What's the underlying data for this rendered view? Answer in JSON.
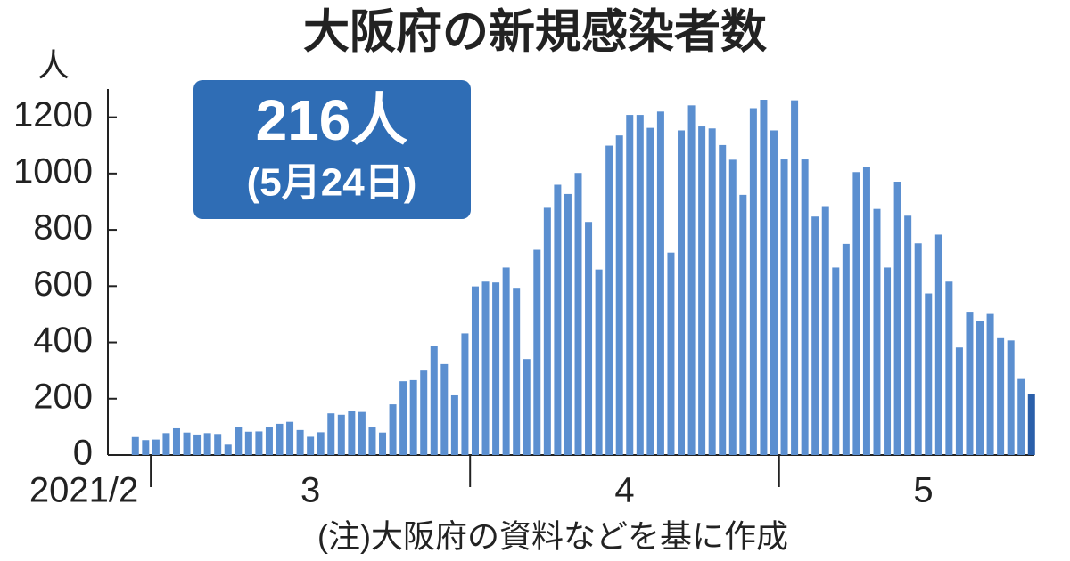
{
  "chart_data": {
    "type": "bar",
    "title": "大阪府の新規感染者数",
    "y_unit": "人",
    "callout": {
      "value": "216人",
      "date": "(5月24日)"
    },
    "note": "(注)大阪府の資料などを基に作成",
    "color": "#5b8fd0",
    "highlight_color": "#2a5faa",
    "values": [
      64,
      53,
      55,
      78,
      95,
      80,
      73,
      78,
      75,
      37,
      100,
      83,
      84,
      98,
      111,
      118,
      89,
      65,
      81,
      148,
      143,
      158,
      153,
      98,
      80,
      180,
      262,
      266,
      300,
      386,
      323,
      212,
      432,
      599,
      616,
      613,
      666,
      594,
      341,
      729,
      878,
      960,
      927,
      1002,
      828,
      659,
      1099,
      1135,
      1208,
      1208,
      1162,
      1220,
      719,
      1153,
      1242,
      1167,
      1160,
      1101,
      1049,
      924,
      1232,
      1262,
      1153,
      1050,
      1260,
      1050,
      847,
      884,
      666,
      750,
      1005,
      1022,
      874,
      666,
      971,
      850,
      752,
      574,
      783,
      616,
      382,
      509,
      475,
      501,
      415,
      407,
      270,
      216
    ],
    "xlim": [
      0,
      87
    ],
    "xticks": [
      2,
      33,
      63
    ],
    "month_labels": [
      {
        "value": -4.5,
        "label": "2021/2"
      },
      {
        "value": 17.5,
        "label": "3"
      },
      {
        "value": 48,
        "label": "4"
      },
      {
        "value": 77,
        "label": "5"
      }
    ],
    "ylim": [
      0,
      1300
    ],
    "yticks": [
      0,
      200,
      400,
      600,
      800,
      1000,
      1200
    ]
  }
}
